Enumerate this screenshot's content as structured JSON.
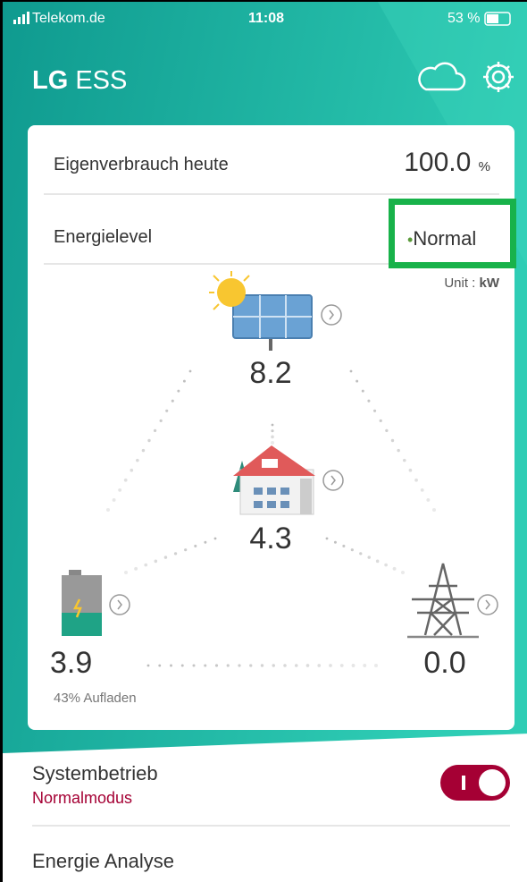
{
  "status_bar": {
    "carrier": "Telekom.de",
    "time": "11:08",
    "battery": "53 %"
  },
  "header": {
    "brand": "LG",
    "product": "ESS"
  },
  "summary": {
    "self_consumption": {
      "label": "Eigenverbrauch heute",
      "value": "100.0",
      "unit": "%"
    },
    "energy_level": {
      "label": "Energielevel",
      "value": "Normal"
    }
  },
  "flow": {
    "unit_label": "Unit :",
    "unit": "kW",
    "solar": "8.2",
    "home": "4.3",
    "battery": "3.9",
    "battery_status": "43% Aufladen",
    "grid": "0.0"
  },
  "menu": {
    "system": {
      "label": "Systembetrieb",
      "mode": "Normalmodus"
    },
    "analysis": "Energie Analyse"
  }
}
